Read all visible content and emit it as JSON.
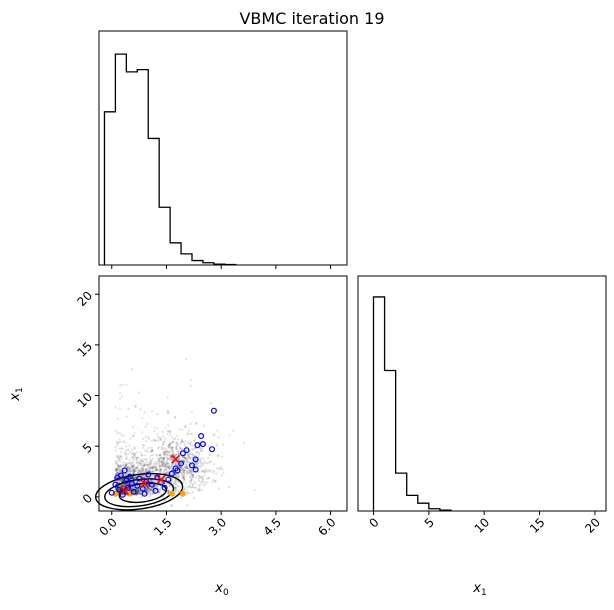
{
  "title": "VBMC iteration 19",
  "chart_data": [
    {
      "panel": "x0-marginal",
      "type": "histogram-step",
      "xlim": [
        -0.35,
        6.45
      ],
      "bin_edges": [
        -0.2,
        0.1,
        0.4,
        0.7,
        1.0,
        1.3,
        1.6,
        1.9,
        2.2,
        2.5,
        2.8,
        3.1,
        3.4
      ],
      "heights": [
        0.69,
        0.95,
        0.87,
        0.88,
        0.57,
        0.26,
        0.1,
        0.05,
        0.02,
        0.01,
        0.004,
        0.002
      ],
      "xticks": [
        "0.0",
        "1.5",
        "3.0",
        "4.5",
        "6.0"
      ]
    },
    {
      "panel": "x0-x1-joint",
      "type": "scatter",
      "xlim": [
        -0.35,
        6.45
      ],
      "ylim": [
        -1.4,
        21.8
      ],
      "xlabel": "x0",
      "ylabel": "x1",
      "xticks": [
        "0.0",
        "1.5",
        "3.0",
        "4.5",
        "6.0"
      ],
      "yticks": [
        "0",
        "5",
        "10",
        "15",
        "20"
      ],
      "posterior_samples_color": "#000000",
      "training_points": [
        [
          0.0,
          0.4
        ],
        [
          0.1,
          1.2
        ],
        [
          0.2,
          0.7
        ],
        [
          0.25,
          2.1
        ],
        [
          0.35,
          2.6
        ],
        [
          0.4,
          1.6
        ],
        [
          0.45,
          0.9
        ],
        [
          0.55,
          1.3
        ],
        [
          0.6,
          0.5
        ],
        [
          0.7,
          1.1
        ],
        [
          0.75,
          1.8
        ],
        [
          0.85,
          0.8
        ],
        [
          0.95,
          1.5
        ],
        [
          1.0,
          2.2
        ],
        [
          1.1,
          1.2
        ],
        [
          1.2,
          0.6
        ],
        [
          1.25,
          1.9
        ],
        [
          1.35,
          1.4
        ],
        [
          1.45,
          0.9
        ],
        [
          1.55,
          1.7
        ],
        [
          1.65,
          2.3
        ],
        [
          1.75,
          2.8
        ],
        [
          1.8,
          2.6
        ],
        [
          1.9,
          3.3
        ],
        [
          1.95,
          4.3
        ],
        [
          2.05,
          4.6
        ],
        [
          2.2,
          3.1
        ],
        [
          2.3,
          3.7
        ],
        [
          2.35,
          5.1
        ],
        [
          2.45,
          6.0
        ],
        [
          2.5,
          5.2
        ],
        [
          2.75,
          4.7
        ],
        [
          2.8,
          8.5
        ],
        [
          2.3,
          2.7
        ],
        [
          0.15,
          1.9
        ],
        [
          0.3,
          0.2
        ],
        [
          0.5,
          2.0
        ],
        [
          0.9,
          0.3
        ]
      ],
      "training_color": "#0000ff",
      "highlight_points": [
        [
          1.75,
          3.7
        ],
        [
          0.35,
          0.6
        ],
        [
          0.9,
          1.3
        ],
        [
          1.35,
          1.7
        ]
      ],
      "highlight_color": "#ff0000",
      "extra_points": [
        [
          0.1,
          0.3
        ],
        [
          0.5,
          0.3
        ],
        [
          1.65,
          0.3
        ],
        [
          1.95,
          0.3
        ]
      ],
      "extra_color": "#ffa500"
    },
    {
      "panel": "x1-marginal",
      "type": "histogram-step",
      "xlim": [
        -1.4,
        21.0
      ],
      "bin_edges": [
        0.0,
        1.0,
        2.0,
        3.0,
        4.0,
        5.0,
        6.0,
        7.0
      ],
      "heights": [
        0.96,
        0.63,
        0.17,
        0.07,
        0.035,
        0.01,
        0.004
      ],
      "xlabel": "x1",
      "xticks": [
        "0",
        "5",
        "10",
        "15",
        "20"
      ]
    }
  ]
}
